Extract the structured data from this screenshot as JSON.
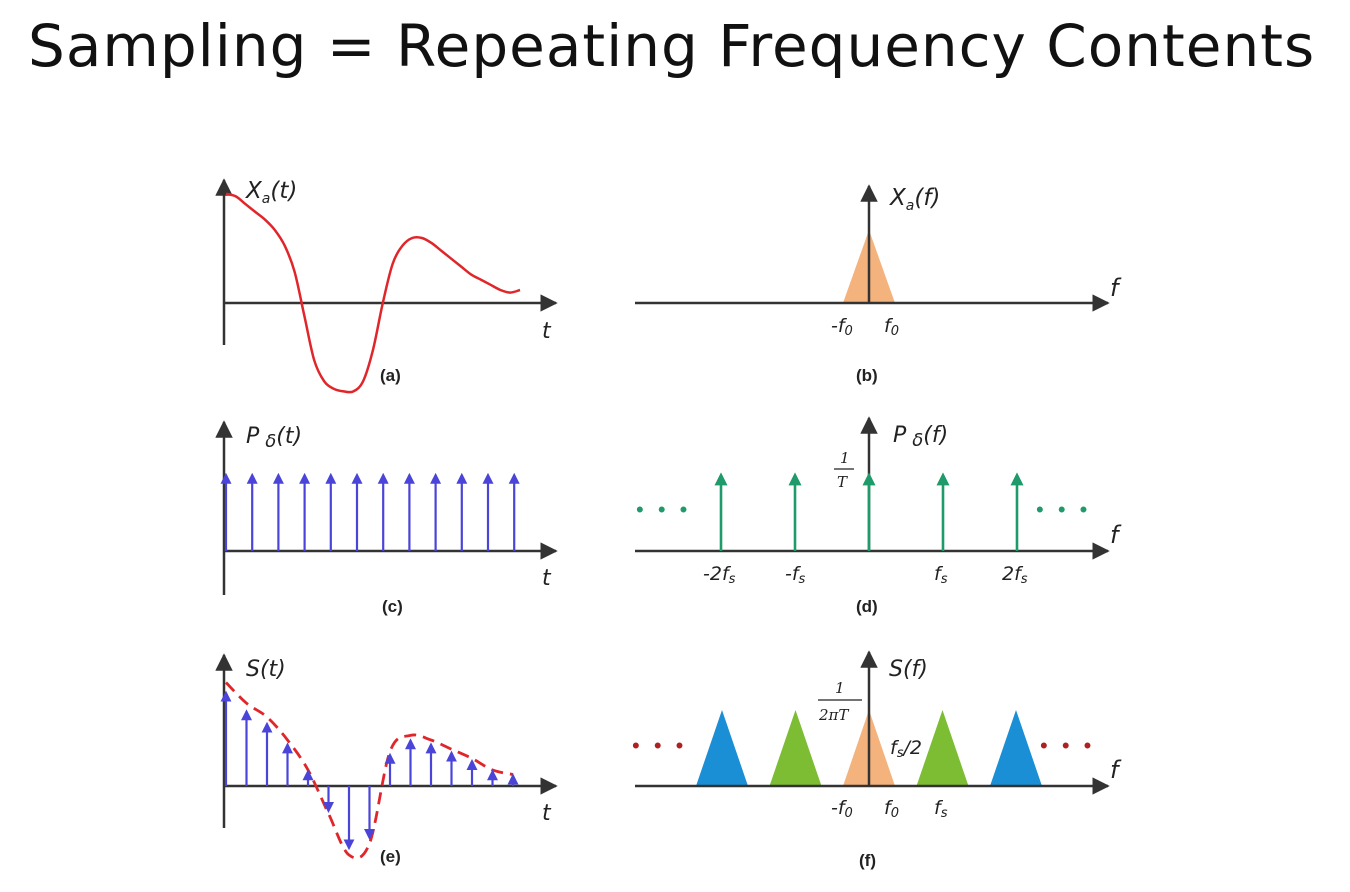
{
  "title": "Sampling = Repeating Frequency Contents",
  "colors": {
    "signal": "#e0262a",
    "impulse_time": "#4a45d8",
    "impulse_freq": "#1f9a6a",
    "base_band": "#f4b27d",
    "replica_green": "#7cbd33",
    "replica_blue": "#1a8fd6",
    "dots_red": "#b02020",
    "axis": "#333333"
  },
  "panels": {
    "a": {
      "caption": "(a)",
      "y_label": "X",
      "y_label_sub": "a",
      "y_label_arg": "(t)",
      "x_label": "t",
      "signal": [
        [
          0,
          0.42
        ],
        [
          1,
          0.41
        ],
        [
          2,
          0.38
        ],
        [
          3,
          0.35
        ],
        [
          4,
          0.32
        ],
        [
          5,
          0.28
        ],
        [
          6,
          0.22
        ],
        [
          7,
          0.12
        ],
        [
          8,
          -0.05
        ],
        [
          9,
          -0.22
        ],
        [
          10,
          -0.3
        ],
        [
          11,
          -0.33
        ],
        [
          12,
          -0.34
        ],
        [
          13,
          -0.34
        ],
        [
          14,
          -0.3
        ],
        [
          15,
          -0.18
        ],
        [
          16,
          0.0
        ],
        [
          17,
          0.15
        ],
        [
          18,
          0.22
        ],
        [
          19,
          0.25
        ],
        [
          20,
          0.25
        ],
        [
          21,
          0.23
        ],
        [
          22,
          0.2
        ],
        [
          23,
          0.17
        ],
        [
          24,
          0.14
        ],
        [
          25,
          0.11
        ],
        [
          26,
          0.09
        ],
        [
          27,
          0.07
        ],
        [
          28,
          0.05
        ],
        [
          29,
          0.04
        ],
        [
          30,
          0.05
        ]
      ]
    },
    "b": {
      "caption": "(b)",
      "y_label": "X",
      "y_label_sub": "a",
      "y_label_arg": "(f)",
      "x_label": "f",
      "tick_neg": "-f",
      "tick_pos": "f",
      "tick_sub": "0"
    },
    "c": {
      "caption": "(c)",
      "y_label": "P",
      "y_label_mid": "δ",
      "y_label_arg": "(t)",
      "x_label": "t",
      "impulse_count": 12
    },
    "d": {
      "caption": "(d)",
      "y_label": "P",
      "y_label_mid": "δ",
      "y_label_arg": "(f)",
      "x_label": "f",
      "height_num": "1",
      "height_den": "T",
      "ticks": [
        "-2f",
        "-f",
        "f",
        "2f"
      ],
      "tick_sub": "s",
      "impulse_positions": [
        -2,
        -1,
        0,
        1,
        2
      ],
      "ellipsis": "• • •"
    },
    "e": {
      "caption": "(e)",
      "y_label": "S(t)",
      "x_label": "t",
      "samples": [
        0.45,
        0.36,
        0.3,
        0.2,
        0.07,
        -0.12,
        -0.3,
        -0.25,
        0.15,
        0.22,
        0.2,
        0.16,
        0.12,
        0.07,
        0.05
      ]
    },
    "f": {
      "caption": "(f)",
      "y_label": "S(f)",
      "x_label": "f",
      "height_num": "1",
      "height_den": "2πT",
      "tick_neg": "-f",
      "tick_pos": "f",
      "tick_sub": "0",
      "tick_fs": "f",
      "tick_fs_sub": "s",
      "half_label": "f",
      "half_label_sub": "s",
      "half_label_suffix": "/2",
      "ellipsis": "• • •",
      "replicas": [
        "blue",
        "green",
        "base",
        "green",
        "blue"
      ]
    }
  }
}
